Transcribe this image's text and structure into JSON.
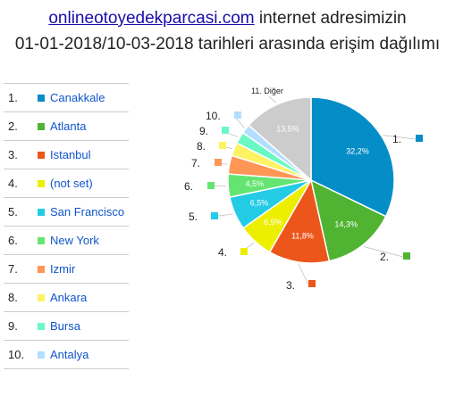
{
  "title": {
    "link_text": "onlineotoyedekparcasi.com",
    "line1_rest": " internet adresimizin",
    "line2": "01-01-2018/10-03-2018 tarihleri arasında erişim dağılımı"
  },
  "legend": [
    {
      "num": "1.",
      "label": "Canakkale",
      "color": "#058dc7"
    },
    {
      "num": "2.",
      "label": "Atlanta",
      "color": "#50b432"
    },
    {
      "num": "3.",
      "label": "Istanbul",
      "color": "#ed561b"
    },
    {
      "num": "4.",
      "label": "(not set)",
      "color": "#edef00"
    },
    {
      "num": "5.",
      "label": "San Francisco",
      "color": "#24cbe5"
    },
    {
      "num": "6.",
      "label": "New York",
      "color": "#64e572"
    },
    {
      "num": "7.",
      "label": "Izmir",
      "color": "#ff9655"
    },
    {
      "num": "8.",
      "label": "Ankara",
      "color": "#fff263"
    },
    {
      "num": "9.",
      "label": "Bursa",
      "color": "#6af9c4"
    },
    {
      "num": "10.",
      "label": "Antalya",
      "color": "#b2deff"
    }
  ],
  "chart_data": {
    "type": "pie",
    "slices": [
      {
        "marker": "1.",
        "value": 32.2,
        "label": "32,2%",
        "color": "#058dc7"
      },
      {
        "marker": "2.",
        "value": 14.3,
        "label": "14,3%",
        "color": "#50b432"
      },
      {
        "marker": "3.",
        "value": 11.8,
        "label": "11,8%",
        "color": "#ed561b"
      },
      {
        "marker": "4.",
        "value": 6.9,
        "label": "6,9%",
        "color": "#edef00"
      },
      {
        "marker": "5.",
        "value": 6.5,
        "label": "6,5%",
        "color": "#24cbe5"
      },
      {
        "marker": "6.",
        "value": 4.5,
        "label": "4,5%",
        "color": "#64e572"
      },
      {
        "marker": "7.",
        "value": 3.6,
        "label": "",
        "color": "#ff9655"
      },
      {
        "marker": "8.",
        "value": 2.6,
        "label": "",
        "color": "#fff263"
      },
      {
        "marker": "9.",
        "value": 2.3,
        "label": "",
        "color": "#6af9c4"
      },
      {
        "marker": "10.",
        "value": 1.8,
        "label": "",
        "color": "#b2deff"
      },
      {
        "marker": "11. Diğer",
        "value": 13.5,
        "label": "13,5%",
        "color": "#cccccc"
      }
    ]
  }
}
